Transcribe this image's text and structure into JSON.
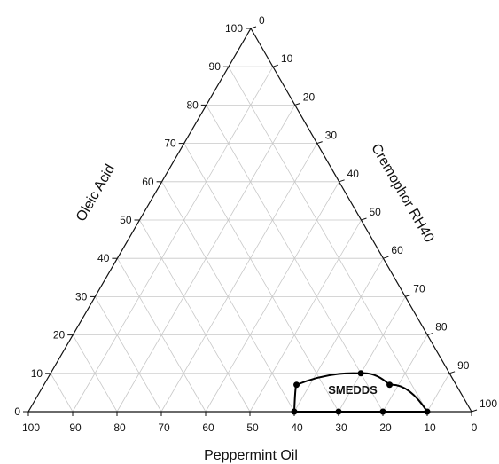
{
  "chart_data": {
    "type": "ternary",
    "axes": {
      "left": {
        "label": "Oleic Acid",
        "ticks": [
          "0",
          "10",
          "20",
          "30",
          "40",
          "50",
          "60",
          "70",
          "80",
          "90",
          "100"
        ]
      },
      "right": {
        "label": "Cremophor RH40",
        "ticks": [
          "0",
          "10",
          "20",
          "30",
          "40",
          "50",
          "60",
          "70",
          "80",
          "90",
          "100"
        ]
      },
      "bottom": {
        "label": "Peppermint Oil",
        "ticks": [
          "100",
          "90",
          "80",
          "70",
          "60",
          "50",
          "40",
          "30",
          "20",
          "10",
          "0"
        ]
      }
    },
    "grid": true,
    "grid_step": 10,
    "region": {
      "label": "SMEDDS",
      "points": [
        {
          "oleic_acid": 0,
          "cremophor_rh40": 60,
          "peppermint_oil": 40
        },
        {
          "oleic_acid": 7,
          "cremophor_rh40": 57,
          "peppermint_oil": 36
        },
        {
          "oleic_acid": 10,
          "cremophor_rh40": 70,
          "peppermint_oil": 20
        },
        {
          "oleic_acid": 7,
          "cremophor_rh40": 78,
          "peppermint_oil": 15
        },
        {
          "oleic_acid": 0,
          "cremophor_rh40": 90,
          "peppermint_oil": 10
        },
        {
          "oleic_acid": 0,
          "cremophor_rh40": 80,
          "peppermint_oil": 20
        },
        {
          "oleic_acid": 0,
          "cremophor_rh40": 70,
          "peppermint_oil": 30
        }
      ]
    },
    "colors": {
      "axis": "#111111",
      "grid": "#c8c8c8",
      "region": "#000000"
    }
  }
}
